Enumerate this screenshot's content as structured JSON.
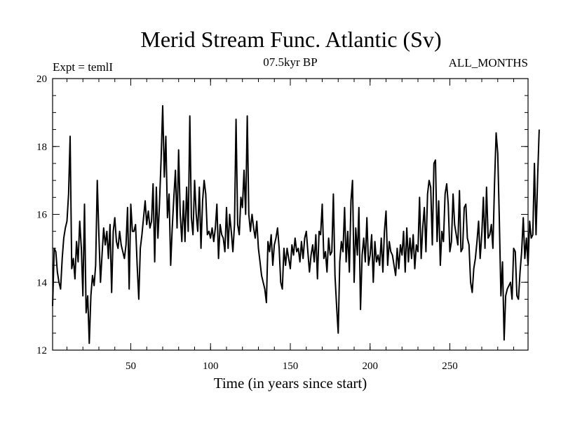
{
  "chart_data": {
    "type": "line",
    "title": "Merid Stream Func. Atlantic (Sv)",
    "subtitle": "07.5kyr BP",
    "left_label": "Expt = temlI",
    "right_label": "ALL_MONTHS",
    "xlabel": "Time (in years since start)",
    "ylabel": "",
    "xlim": [
      1,
      299
    ],
    "ylim": [
      12,
      20
    ],
    "x_ticks": [
      50,
      100,
      150,
      200,
      250
    ],
    "y_ticks": [
      12,
      14,
      16,
      18,
      20
    ],
    "x_minor_step": 10,
    "y_minor_step": 0.5,
    "series": [
      {
        "name": "Merid Stream Func. Atlantic",
        "color": "#000000",
        "x_start": 1,
        "x_step": 1,
        "values": [
          13.3,
          15.0,
          14.9,
          14.3,
          14.0,
          13.8,
          14.7,
          15.3,
          15.6,
          15.8,
          16.6,
          18.3,
          14.4,
          14.7,
          14.1,
          15.2,
          14.6,
          15.8,
          15.0,
          13.6,
          16.3,
          13.1,
          13.6,
          12.2,
          13.6,
          14.2,
          13.9,
          14.5,
          17.0,
          15.4,
          14.0,
          14.8,
          15.6,
          15.1,
          15.5,
          14.7,
          15.7,
          13.7,
          15.5,
          15.9,
          15.2,
          15.0,
          15.5,
          15.1,
          14.9,
          14.7,
          15.1,
          16.2,
          13.8,
          16.3,
          15.5,
          15.5,
          15.7,
          14.5,
          13.5,
          15.0,
          15.4,
          15.9,
          16.4,
          15.7,
          16.1,
          15.6,
          15.8,
          16.9,
          14.6,
          16.8,
          15.3,
          16.3,
          17.6,
          19.2,
          17.1,
          18.3,
          15.9,
          16.6,
          14.5,
          15.6,
          16.5,
          17.3,
          15.6,
          17.9,
          16.0,
          15.2,
          16.4,
          15.2,
          16.8,
          15.5,
          18.9,
          15.9,
          15.4,
          17.0,
          16.0,
          15.5,
          16.8,
          15.0,
          16.4,
          17.0,
          16.6,
          15.4,
          15.5,
          15.3,
          15.6,
          15.2,
          15.6,
          16.3,
          14.7,
          15.7,
          15.4,
          15.3,
          14.9,
          16.2,
          15.0,
          16.0,
          15.5,
          14.9,
          15.7,
          18.8,
          15.7,
          15.4,
          16.5,
          16.2,
          17.3,
          16.0,
          18.9,
          16.0,
          15.5,
          16.0,
          15.6,
          15.3,
          15.8,
          15.0,
          14.6,
          14.2,
          14.0,
          13.8,
          13.4,
          15.2,
          14.9,
          15.4,
          14.5,
          15.1,
          15.3,
          15.6,
          15.0,
          14.0,
          13.8,
          15.0,
          14.5,
          15.0,
          14.7,
          14.4,
          15.1,
          14.8,
          15.3,
          14.9,
          15.0,
          14.6,
          15.2,
          14.7,
          15.3,
          15.5,
          14.9,
          14.3,
          14.8,
          15.1,
          14.6,
          15.4,
          14.1,
          15.5,
          15.4,
          16.3,
          14.7,
          14.9,
          14.3,
          15.3,
          14.8,
          14.9,
          16.6,
          14.2,
          13.3,
          12.5,
          14.6,
          15.2,
          14.9,
          16.2,
          14.6,
          15.5,
          14.3,
          16.4,
          17.0,
          14.0,
          15.6,
          14.8,
          16.2,
          13.2,
          14.8,
          15.3,
          14.6,
          15.9,
          14.5,
          14.8,
          15.4,
          14.0,
          15.2,
          14.6,
          14.8,
          14.5,
          15.3,
          14.3,
          15.5,
          16.1,
          14.5,
          15.2,
          14.9,
          14.8,
          14.5,
          14.2,
          15.0,
          14.4,
          15.1,
          14.8,
          15.5,
          14.3,
          15.6,
          14.6,
          15.3,
          14.7,
          15.4,
          14.4,
          15.1,
          14.9,
          16.5,
          14.7,
          15.6,
          16.2,
          14.9,
          16.6,
          17.0,
          16.8,
          15.1,
          17.5,
          17.6,
          15.2,
          16.4,
          14.5,
          15.5,
          15.2,
          16.6,
          16.9,
          16.3,
          14.9,
          15.2,
          16.6,
          15.7,
          15.4,
          15.1,
          16.7,
          14.9,
          15.0,
          16.2,
          16.3,
          15.3,
          15.1,
          14.0,
          13.7,
          14.4,
          14.7,
          15.2,
          15.8,
          14.7,
          15.4,
          16.5,
          15.0,
          16.8,
          15.3,
          15.4,
          15.7,
          15.0,
          16.9,
          18.4,
          17.8,
          15.9,
          13.6,
          14.6,
          12.3,
          13.6,
          13.8,
          13.9,
          14.0,
          13.5,
          15.0,
          14.9,
          13.6,
          13.5,
          14.3,
          14.9,
          15.9,
          14.7,
          15.3,
          14.5,
          15.8,
          15.3,
          15.4,
          17.5,
          15.4,
          17.1,
          18.5
        ]
      }
    ]
  }
}
